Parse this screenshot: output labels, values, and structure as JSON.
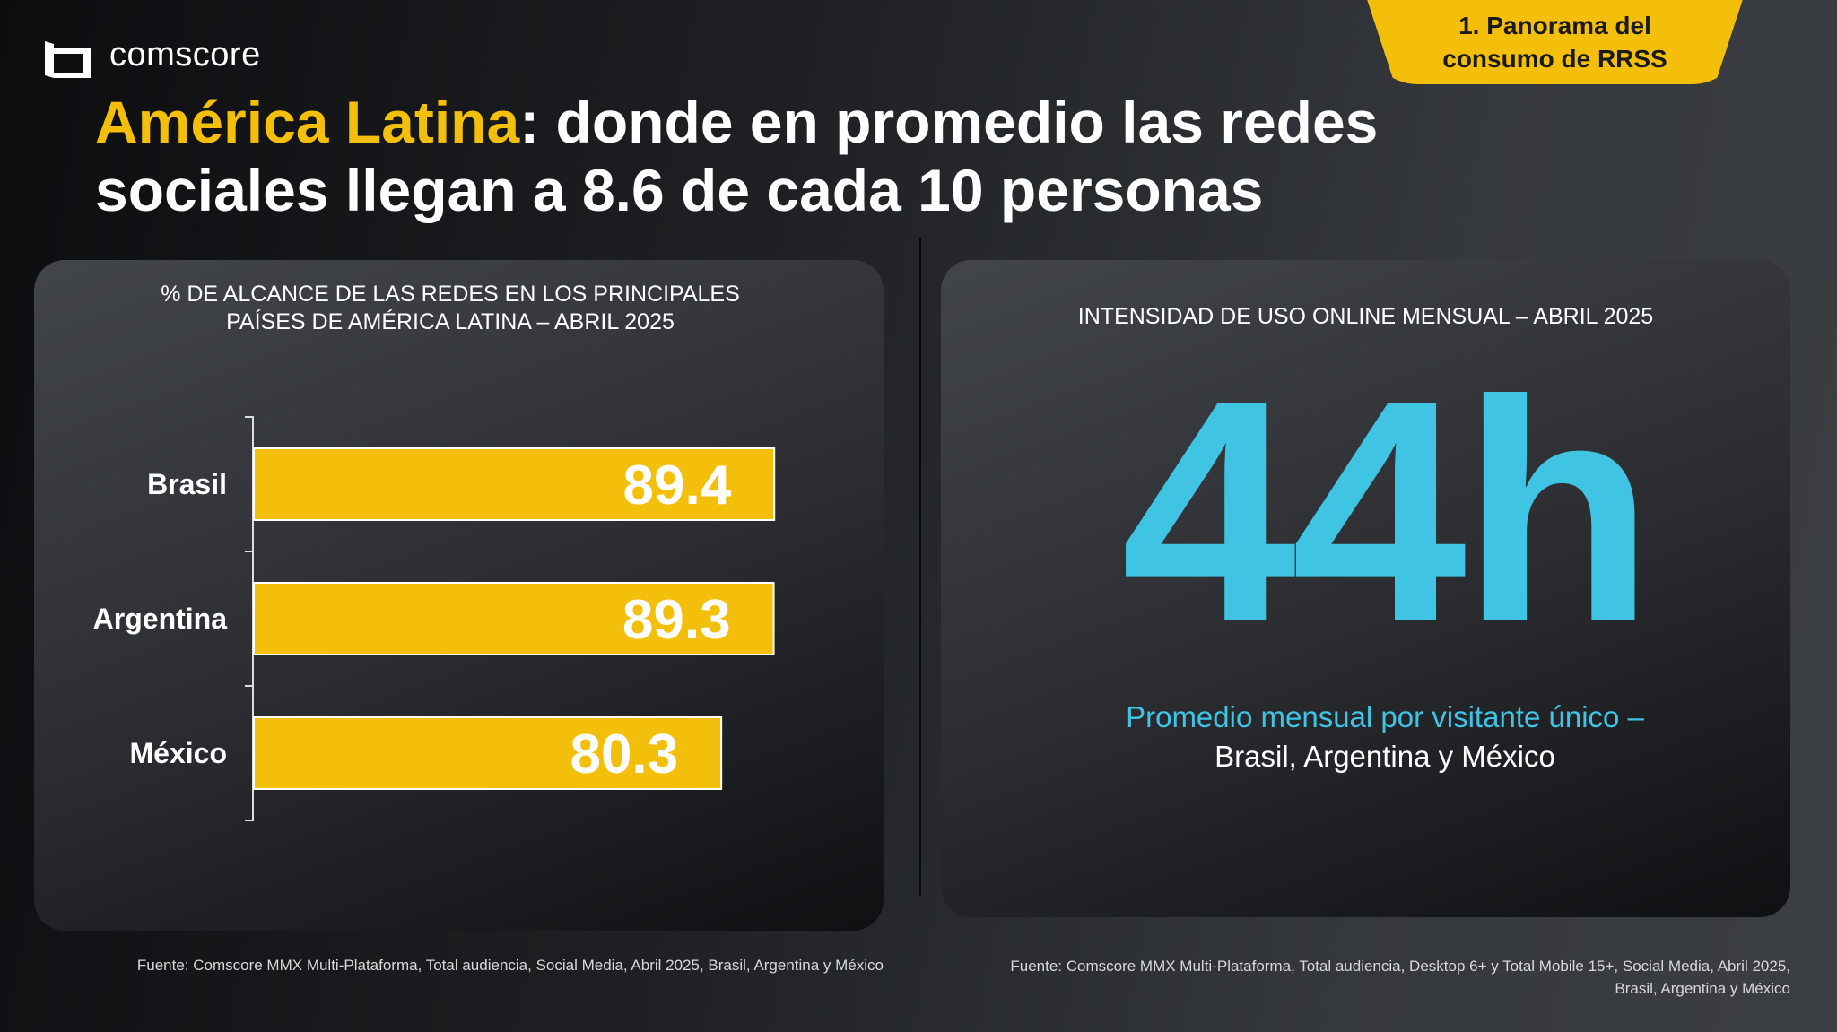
{
  "brand": {
    "name": "comscore"
  },
  "badge": {
    "line1": "1. Panorama del",
    "line2": "consumo de RRSS"
  },
  "title": {
    "highlight": "América Latina",
    "rest_line1": ": donde en promedio las redes",
    "line2": "sociales llegan a 8.6 de cada 10 personas"
  },
  "colors": {
    "accent": "#f4bf0a",
    "cyan": "#40c4e4"
  },
  "chart_data": {
    "type": "bar",
    "orientation": "horizontal",
    "title_line1": "% DE ALCANCE DE LAS REDES EN LOS PRINCIPALES",
    "title_line2": "PAÍSES DE AMÉRICA LATINA – ABRIL 2025",
    "categories": [
      "Brasil",
      "Argentina",
      "México"
    ],
    "values": [
      89.4,
      89.3,
      80.3
    ],
    "labels": [
      "89.4",
      "89.3",
      "80.3"
    ],
    "xlim": [
      0,
      100
    ],
    "grid": false
  },
  "right": {
    "title": "INTENSIDAD DE USO ONLINE MENSUAL – ABRIL 2025",
    "big_value": "44h",
    "sub1": "Promedio mensual por visitante único –",
    "sub2": "Brasil, Argentina y México"
  },
  "footers": {
    "left": "Fuente: Comscore MMX Multi-Plataforma, Total audiencia, Social Media, Abril 2025, Brasil, Argentina y México",
    "right1": "Fuente: Comscore MMX Multi-Plataforma, Total audiencia, Desktop 6+ y Total Mobile 15+, Social Media, Abril 2025,",
    "right2": "Brasil, Argentina y México"
  }
}
